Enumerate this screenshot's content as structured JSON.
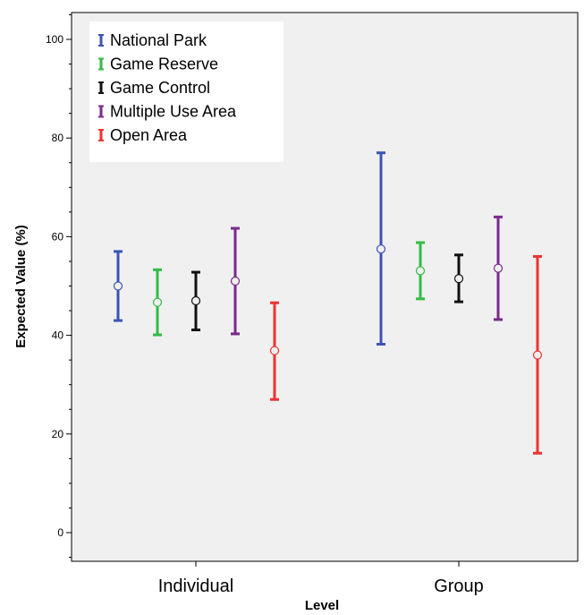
{
  "chart_data": {
    "type": "errorbar",
    "categories": [
      "Individual",
      "Group"
    ],
    "xlabel": "Level",
    "ylabel": "Expected Value (%)",
    "ylim": [
      -5,
      105
    ],
    "yticks": [
      0,
      20,
      40,
      60,
      80,
      100
    ],
    "grid": false,
    "legend_position": "top-left",
    "series": [
      {
        "name": "National Park",
        "color": "#3b55b5",
        "points": [
          {
            "mean": 50.0,
            "low": 43.0,
            "high": 57.0
          },
          {
            "mean": 57.5,
            "low": 38.2,
            "high": 77.0
          }
        ]
      },
      {
        "name": "Game Reserve",
        "color": "#33bb44",
        "points": [
          {
            "mean": 46.7,
            "low": 40.1,
            "high": 53.3
          },
          {
            "mean": 53.1,
            "low": 47.4,
            "high": 58.8
          }
        ]
      },
      {
        "name": "Game Control",
        "color": "#111111",
        "points": [
          {
            "mean": 47.0,
            "low": 41.1,
            "high": 52.8
          },
          {
            "mean": 51.5,
            "low": 46.8,
            "high": 56.3
          }
        ]
      },
      {
        "name": "Multiple Use Area",
        "color": "#7a2a8c",
        "points": [
          {
            "mean": 51.0,
            "low": 40.3,
            "high": 61.7
          },
          {
            "mean": 53.6,
            "low": 43.2,
            "high": 64.0
          }
        ]
      },
      {
        "name": "Open Area",
        "color": "#ee3333",
        "points": [
          {
            "mean": 36.9,
            "low": 27.0,
            "high": 46.6
          },
          {
            "mean": 36.0,
            "low": 16.1,
            "high": 56.0
          }
        ]
      }
    ]
  }
}
